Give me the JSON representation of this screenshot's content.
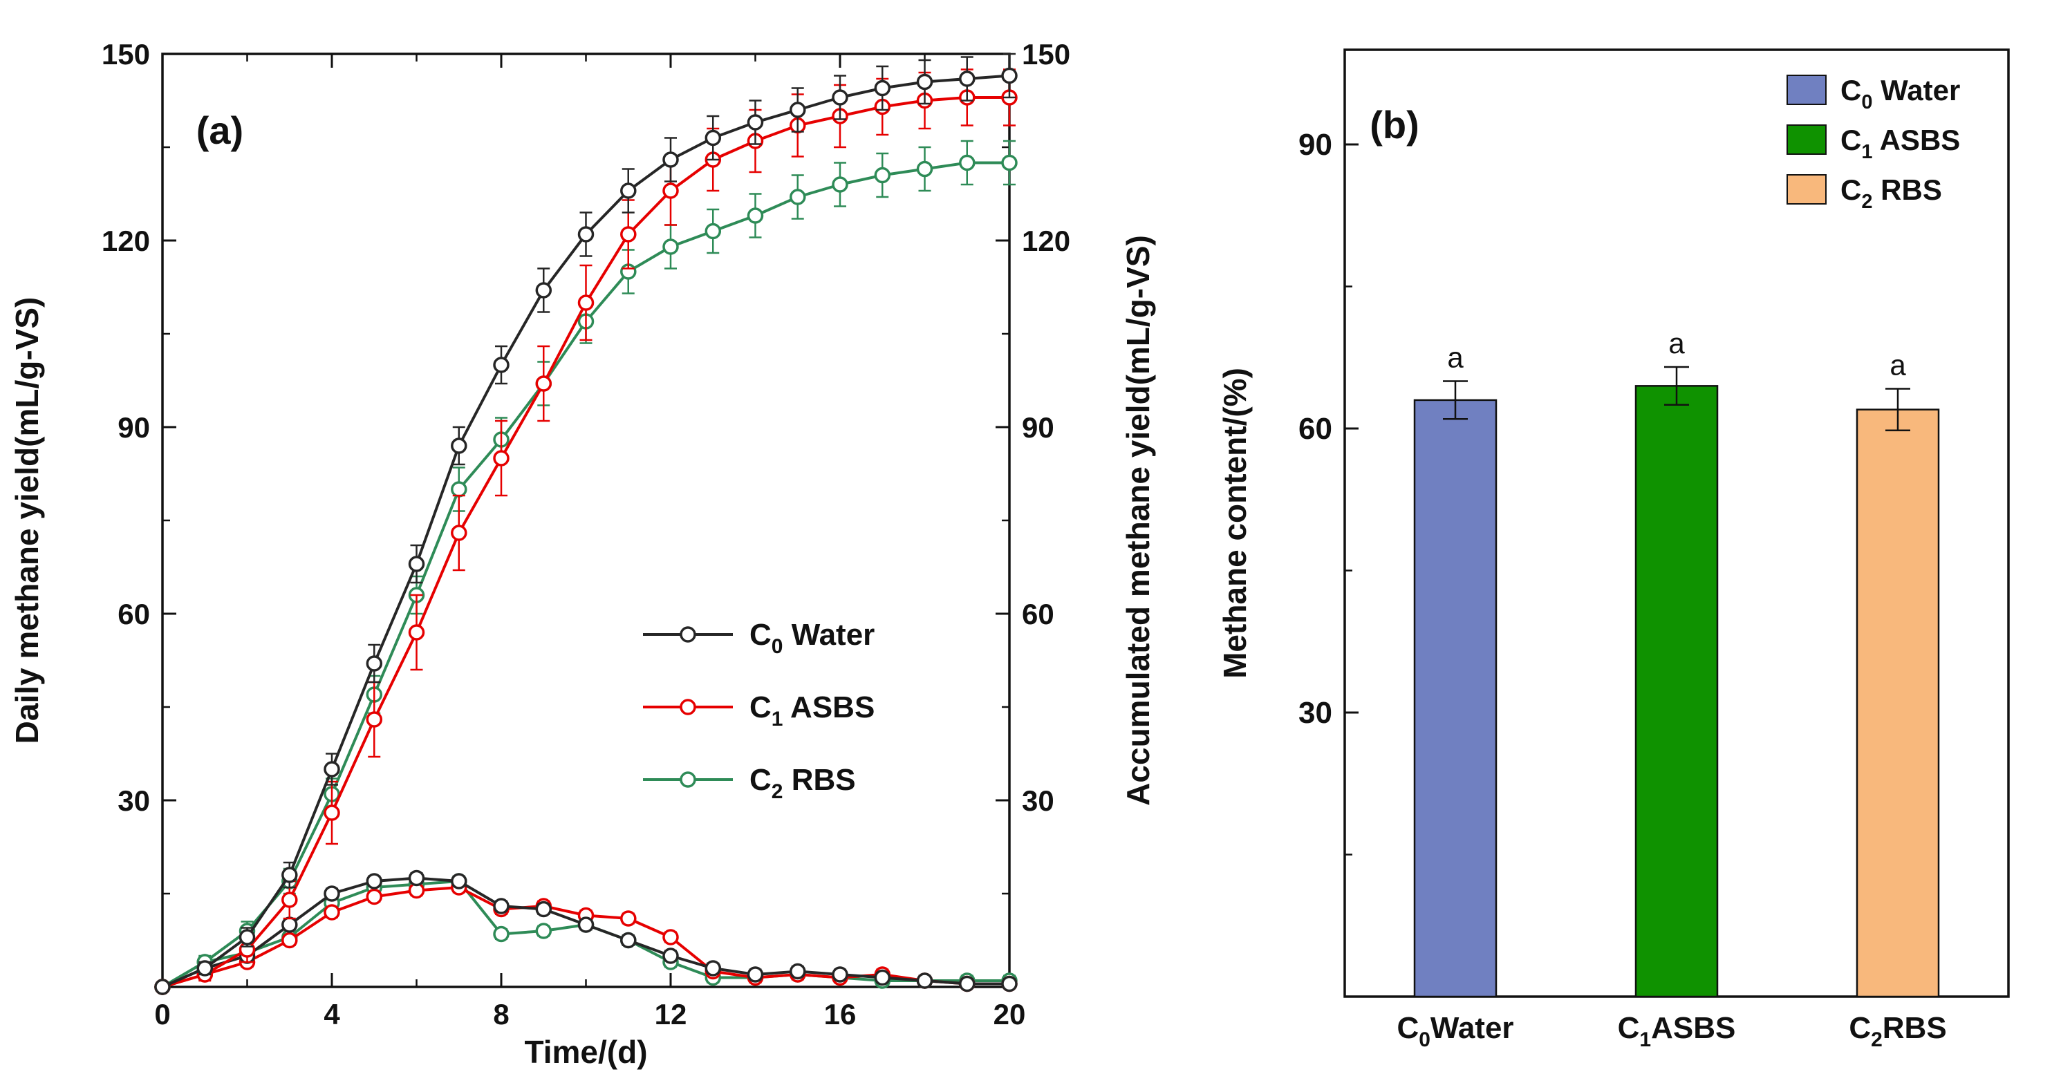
{
  "figure": {
    "background": "#ffffff",
    "axis_color": "#111111"
  },
  "chart_data": [
    {
      "id": "panel_a",
      "type": "line",
      "panel_label": "(a)",
      "xlabel": "Time/(d)",
      "ylabel_left": "Daily methane yield(mL/g-VS)",
      "ylabel_right": "Accumulated methane yield(mL/g-VS)",
      "xlim": [
        0,
        20
      ],
      "ylim": [
        0,
        150
      ],
      "xticks": [
        0,
        4,
        8,
        12,
        16,
        20
      ],
      "xminor": [
        2,
        6,
        10,
        14,
        18
      ],
      "yticks": [
        30,
        60,
        90,
        120,
        150
      ],
      "yminor": [
        15,
        45,
        75,
        105,
        135
      ],
      "grid": false,
      "legend_position": "center-right",
      "x": [
        0,
        1,
        2,
        3,
        4,
        5,
        6,
        7,
        8,
        9,
        10,
        11,
        12,
        13,
        14,
        15,
        16,
        17,
        18,
        19,
        20
      ],
      "series": [
        {
          "name": "C0 Water accumulated",
          "color": "#262626",
          "values": [
            0,
            3,
            8,
            18,
            35,
            52,
            68,
            87,
            100,
            112,
            121,
            128,
            133,
            136.5,
            139,
            141,
            143,
            144.5,
            145.5,
            146,
            146.5
          ],
          "errors": [
            0,
            1,
            1.5,
            2,
            2.5,
            3,
            3,
            3,
            3,
            3.5,
            3.5,
            3.5,
            3.5,
            3.5,
            3.5,
            3.5,
            3.5,
            3.5,
            3.5,
            3.5,
            3.5
          ]
        },
        {
          "name": "C1 ASBS accumulated",
          "color": "#e60000",
          "values": [
            0,
            2,
            6,
            14,
            28,
            43,
            57,
            73,
            85,
            97,
            110,
            121,
            128,
            133,
            136,
            138.5,
            140,
            141.5,
            142.5,
            143,
            143
          ],
          "errors": [
            0,
            1,
            2,
            3,
            5,
            6,
            6,
            6,
            6,
            6,
            6,
            5.5,
            5.5,
            5,
            5,
            5,
            5,
            4.5,
            4.5,
            4.5,
            4.5
          ]
        },
        {
          "name": "C2 RBS accumulated",
          "color": "#2e8b57",
          "values": [
            0,
            4,
            9,
            17,
            31,
            47,
            63,
            80,
            88,
            97,
            107,
            115,
            119,
            121.5,
            124,
            127,
            129,
            130.5,
            131.5,
            132.5,
            132.5
          ],
          "errors": [
            0,
            1,
            1.5,
            2,
            2.5,
            3,
            3,
            3.5,
            3.5,
            3.5,
            3.5,
            3.5,
            3.5,
            3.5,
            3.5,
            3.5,
            3.5,
            3.5,
            3.5,
            3.5,
            3.5
          ]
        },
        {
          "name": "C0 Water daily",
          "color": "#262626",
          "values": [
            0,
            3,
            5,
            10,
            15,
            17,
            17.5,
            17,
            13,
            12.5,
            10,
            7.5,
            5,
            3,
            2,
            2.5,
            2,
            1.5,
            1,
            0.5,
            0.5
          ],
          "errors": 0.8
        },
        {
          "name": "C1 ASBS daily",
          "color": "#e60000",
          "values": [
            0,
            2,
            4,
            7.5,
            12,
            14.5,
            15.5,
            16,
            12.5,
            13,
            11.5,
            11,
            8,
            2.5,
            1.5,
            2,
            1.5,
            2,
            1,
            0.5,
            0.5
          ],
          "errors": 0.8
        },
        {
          "name": "C2 RBS daily",
          "color": "#2e8b57",
          "values": [
            0,
            4,
            5.5,
            8,
            13.5,
            16,
            16.5,
            17,
            8.5,
            9,
            10,
            7.5,
            4,
            1.5,
            1.5,
            2,
            1.5,
            1,
            1,
            1,
            1
          ],
          "errors": 0.8
        }
      ],
      "legend": [
        {
          "pre": "C",
          "sub": "0",
          "post": " Water",
          "color": "#262626"
        },
        {
          "pre": "C",
          "sub": "1",
          "post": " ASBS",
          "color": "#e60000"
        },
        {
          "pre": "C",
          "sub": "2",
          "post": " RBS",
          "color": "#2e8b57"
        }
      ]
    },
    {
      "id": "panel_b",
      "type": "bar",
      "panel_label": "(b)",
      "ylabel": "Methane content/(%)",
      "ylim": [
        0,
        100
      ],
      "yticks": [
        30,
        60,
        90
      ],
      "yminor": [
        15,
        45,
        75
      ],
      "grid": false,
      "legend_position": "top-right",
      "categories": [
        {
          "pre": "C",
          "sub": "0",
          "post": "Water"
        },
        {
          "pre": "C",
          "sub": "1",
          "post": "ASBS"
        },
        {
          "pre": "C",
          "sub": "2",
          "post": "RBS"
        }
      ],
      "values": [
        63,
        64.5,
        62
      ],
      "errors": [
        2,
        2,
        2.2
      ],
      "sig_letters": [
        "a",
        "a",
        "a"
      ],
      "bar_colors": [
        "#7080c1",
        "#0f9200",
        "#f8b87c"
      ],
      "bar_border": "#111111",
      "legend": [
        {
          "pre": "C",
          "sub": "0",
          "post": " Water",
          "color": "#7080c1"
        },
        {
          "pre": "C",
          "sub": "1",
          "post": " ASBS",
          "color": "#0f9200"
        },
        {
          "pre": "C",
          "sub": "2",
          "post": " RBS",
          "color": "#f8b87c"
        }
      ]
    }
  ]
}
